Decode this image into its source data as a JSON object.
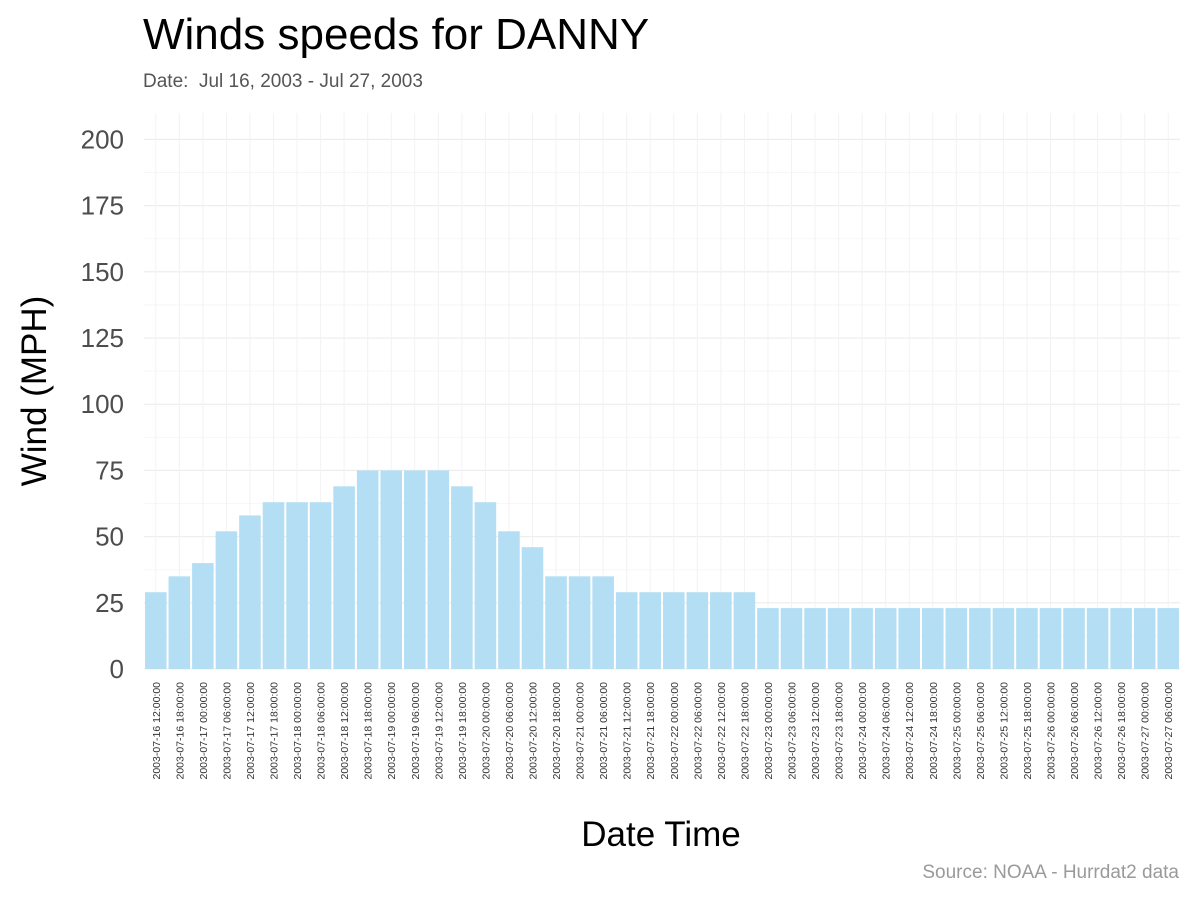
{
  "chart_data": {
    "type": "bar",
    "title": "Winds speeds for DANNY",
    "subtitle": "Date:  Jul 16, 2003 - Jul 27, 2003",
    "caption": "Source: NOAA - Hurrdat2 data",
    "xlabel": "Date Time",
    "ylabel": "Wind (MPH)",
    "ylim": [
      0,
      210
    ],
    "yticks": [
      0,
      25,
      50,
      75,
      100,
      125,
      150,
      175,
      200
    ],
    "grid": true,
    "bar_color": "#b3def3",
    "categories": [
      "2003-07-16 12:00:00",
      "2003-07-16 18:00:00",
      "2003-07-17 00:00:00",
      "2003-07-17 06:00:00",
      "2003-07-17 12:00:00",
      "2003-07-17 18:00:00",
      "2003-07-18 00:00:00",
      "2003-07-18 06:00:00",
      "2003-07-18 12:00:00",
      "2003-07-18 18:00:00",
      "2003-07-19 00:00:00",
      "2003-07-19 06:00:00",
      "2003-07-19 12:00:00",
      "2003-07-19 18:00:00",
      "2003-07-20 00:00:00",
      "2003-07-20 06:00:00",
      "2003-07-20 12:00:00",
      "2003-07-20 18:00:00",
      "2003-07-21 00:00:00",
      "2003-07-21 06:00:00",
      "2003-07-21 12:00:00",
      "2003-07-21 18:00:00",
      "2003-07-22 00:00:00",
      "2003-07-22 06:00:00",
      "2003-07-22 12:00:00",
      "2003-07-22 18:00:00",
      "2003-07-23 00:00:00",
      "2003-07-23 06:00:00",
      "2003-07-23 12:00:00",
      "2003-07-23 18:00:00",
      "2003-07-24 00:00:00",
      "2003-07-24 06:00:00",
      "2003-07-24 12:00:00",
      "2003-07-24 18:00:00",
      "2003-07-25 00:00:00",
      "2003-07-25 06:00:00",
      "2003-07-25 12:00:00",
      "2003-07-25 18:00:00",
      "2003-07-26 00:00:00",
      "2003-07-26 06:00:00",
      "2003-07-26 12:00:00",
      "2003-07-26 18:00:00",
      "2003-07-27 00:00:00",
      "2003-07-27 06:00:00"
    ],
    "values": [
      29,
      35,
      40,
      52,
      58,
      63,
      63,
      63,
      69,
      75,
      75,
      75,
      75,
      69,
      63,
      52,
      46,
      35,
      35,
      35,
      29,
      29,
      29,
      29,
      29,
      29,
      23,
      23,
      23,
      23,
      23,
      23,
      23,
      23,
      23,
      23,
      23,
      23,
      23,
      23,
      23,
      23,
      23,
      23
    ]
  }
}
